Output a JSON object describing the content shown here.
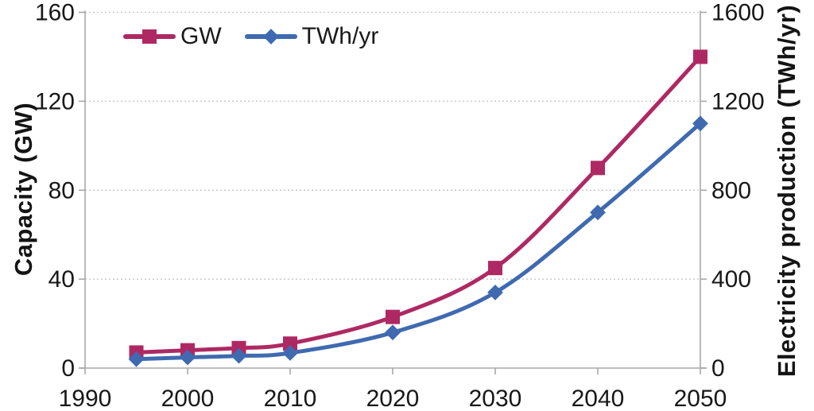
{
  "chart_data": {
    "type": "line",
    "title": "",
    "x": [
      1995,
      2000,
      2005,
      2010,
      2020,
      2030,
      2040,
      2050
    ],
    "x_axis": {
      "range": [
        1990,
        2050
      ],
      "ticks": [
        1990,
        2000,
        2010,
        2020,
        2030,
        2040,
        2050
      ]
    },
    "y_axis_left": {
      "label": "Capacity (GW)",
      "range": [
        0,
        160
      ],
      "ticks": [
        0,
        40,
        80,
        120,
        160
      ]
    },
    "y_axis_right": {
      "label": "Electricity production (TWh/yr)",
      "range": [
        0,
        1600
      ],
      "ticks": [
        0,
        400,
        800,
        1200,
        1600
      ]
    },
    "grid": "horizontal dotted gridlines at left-axis ticks",
    "legend_position": "inside top-left",
    "series": [
      {
        "name": "GW",
        "axis": "left",
        "marker": "square",
        "color": "#ae2963",
        "values": [
          7,
          8,
          9,
          11,
          23,
          45,
          90,
          140
        ]
      },
      {
        "name": "TWh/yr",
        "axis": "right",
        "marker": "diamond",
        "color": "#3f6ab0",
        "values": [
          40,
          48,
          55,
          68,
          160,
          340,
          700,
          1100
        ]
      }
    ],
    "colors": {
      "gridline": "#c9c9c9",
      "axis_line": "#a8a8a8",
      "tick_text": "#181818"
    }
  }
}
